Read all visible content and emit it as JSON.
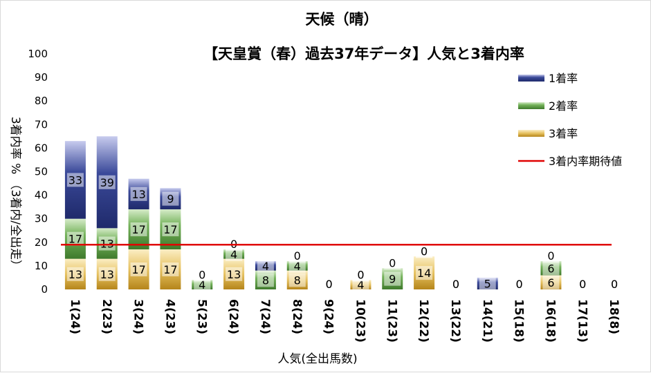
{
  "chart_data": {
    "type": "bar",
    "title": "天候（晴）",
    "subtitle": "【天皇賞（春）過去37年データ】人気と3着内率",
    "xlabel": "人気(全出馬数)",
    "ylabel": "3着内率 %  （3着内/全出走）",
    "ylim": [
      0,
      100
    ],
    "yticks": [
      0,
      10,
      20,
      30,
      40,
      50,
      60,
      70,
      80,
      90,
      100
    ],
    "categories": [
      "1(24)",
      "2(23)",
      "3(24)",
      "4(23)",
      "5(23)",
      "6(24)",
      "7(24)",
      "8(24)",
      "9(24)",
      "10(23)",
      "11(23)",
      "12(22)",
      "13(22)",
      "14(21)",
      "15(18)",
      "16(18)",
      "17(13)",
      "18(8)"
    ],
    "series": [
      {
        "name": "3着率",
        "values": [
          13,
          13,
          17,
          17,
          0,
          13,
          0,
          8,
          0,
          4,
          0,
          14,
          0,
          0,
          0,
          6,
          0,
          0
        ],
        "color": "#c9a227"
      },
      {
        "name": "2着率",
        "values": [
          17,
          13,
          17,
          17,
          4,
          4,
          8,
          4,
          0,
          0,
          9,
          0,
          0,
          0,
          0,
          6,
          0,
          0
        ],
        "color": "#5e9e4a"
      },
      {
        "name": "1着率",
        "values": [
          33,
          39,
          13,
          9,
          0,
          0,
          4,
          0,
          0,
          0,
          0,
          0,
          0,
          5,
          0,
          0,
          0,
          0
        ],
        "color": "#3b4a9a"
      }
    ],
    "line": {
      "name": "3着内率期待値",
      "value": 19,
      "color": "#e00000"
    },
    "legend": [
      "1着率",
      "2着率",
      "3着率",
      "3着内率期待値"
    ],
    "legend_position": "right",
    "grid": false
  }
}
